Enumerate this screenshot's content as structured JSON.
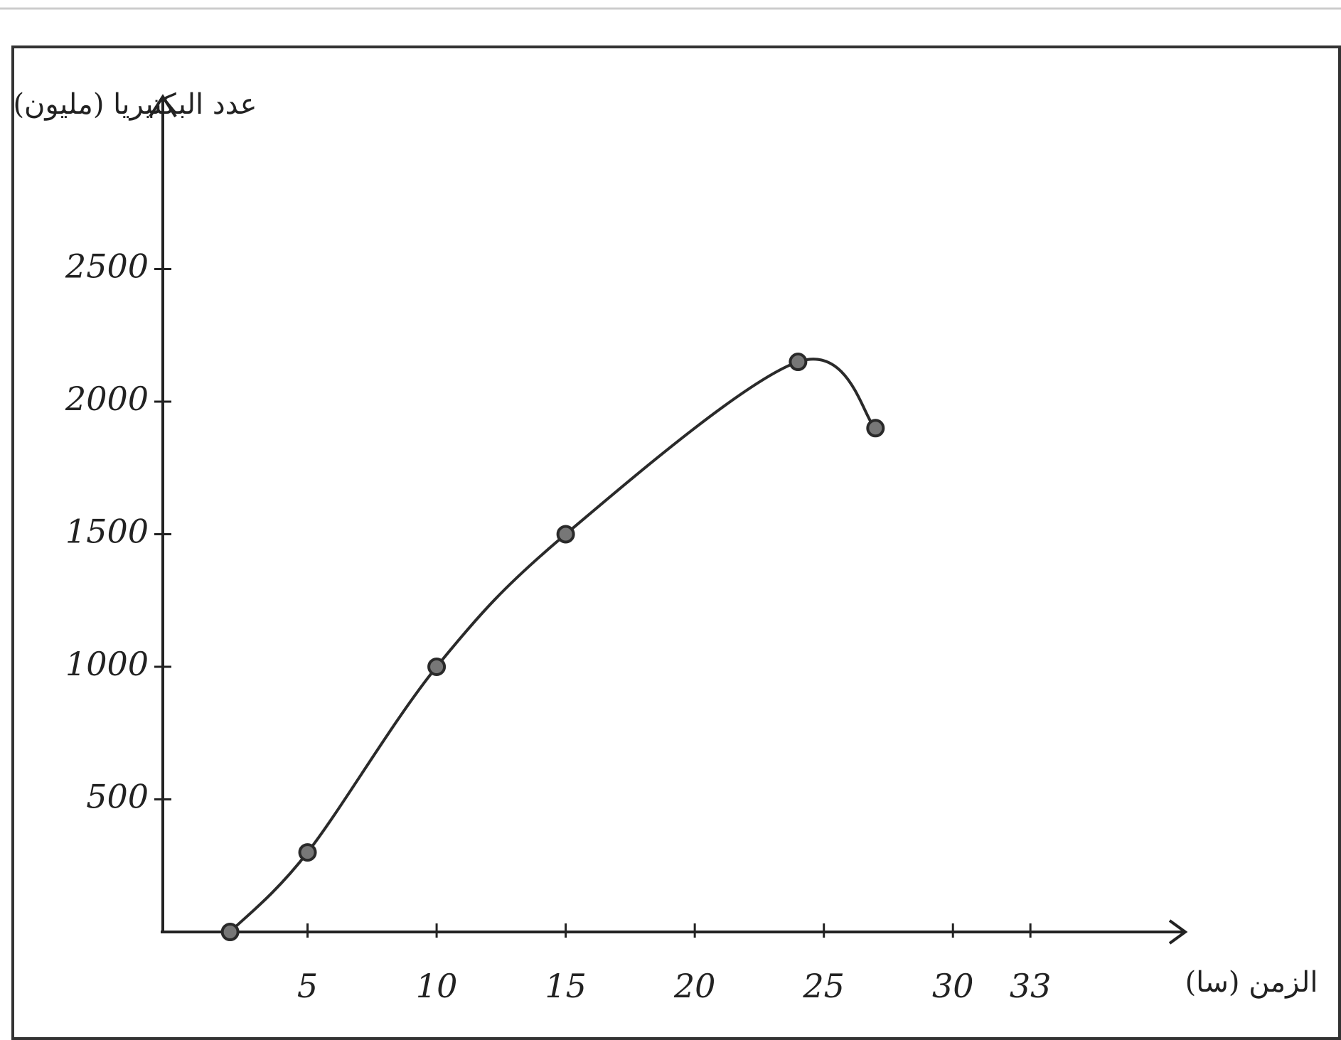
{
  "chart_data": {
    "type": "line",
    "x_label": "الزمن (سا)",
    "y_label": "عدد البكتيريا (مليون)",
    "x": [
      2,
      5,
      10,
      15,
      24,
      27
    ],
    "series": [
      {
        "color": "#2a2a2a",
        "values": [
          0,
          300,
          1000,
          1500,
          2150,
          1900
        ]
      }
    ],
    "xlim": [
      0,
      39
    ],
    "ylim": [
      0,
      3150
    ],
    "xticks": [
      5,
      10,
      15,
      20,
      25,
      30,
      33
    ],
    "yticks": [
      500,
      1000,
      1500,
      2000,
      2500
    ],
    "markers": true
  }
}
